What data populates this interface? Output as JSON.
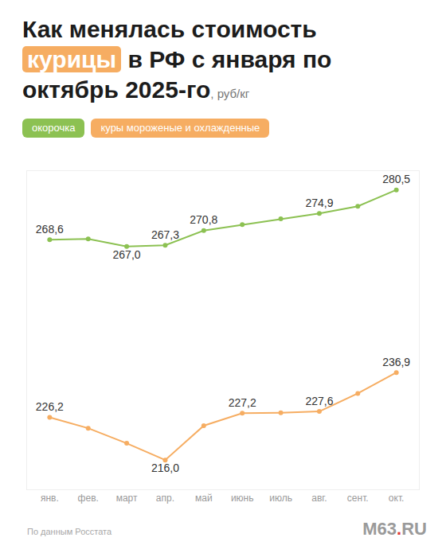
{
  "chart_data": {
    "type": "line",
    "title": "Как менялась стоимость курицы в РФ с января по октябрь 2025-го",
    "highlight": "курицы",
    "unit": ", руб/кг",
    "categories": [
      "янв.",
      "фев.",
      "март",
      "апр.",
      "май",
      "июнь",
      "июль",
      "авг.",
      "сент.",
      "окт."
    ],
    "series": [
      {
        "name": "окорочка",
        "color": "#8cc152",
        "values": [
          268.6,
          268.8,
          267.0,
          267.3,
          270.8,
          272.2,
          273.6,
          274.9,
          276.6,
          280.5
        ],
        "value_labels": [
          "268,6",
          null,
          "267,0",
          "267,3",
          "270,8",
          null,
          null,
          "274,9",
          null,
          "280,5"
        ]
      },
      {
        "name": "куры мороженые и охлажденные",
        "color": "#f6ad62",
        "values": [
          226.2,
          223.6,
          220.0,
          216.0,
          224.2,
          227.2,
          227.3,
          227.6,
          231.9,
          236.9
        ],
        "value_labels": [
          "226,2",
          null,
          null,
          "216,0",
          null,
          "227,2",
          null,
          "227,6",
          null,
          "236,9"
        ]
      }
    ],
    "ylim": [
      209,
      285
    ],
    "yticks": [],
    "grid": false,
    "tick_labels": "x",
    "data_labels": true,
    "legend": "top left",
    "marker": "circle",
    "line_style": "solid",
    "source": "По данным Росстата",
    "logo": "M63.RU"
  }
}
